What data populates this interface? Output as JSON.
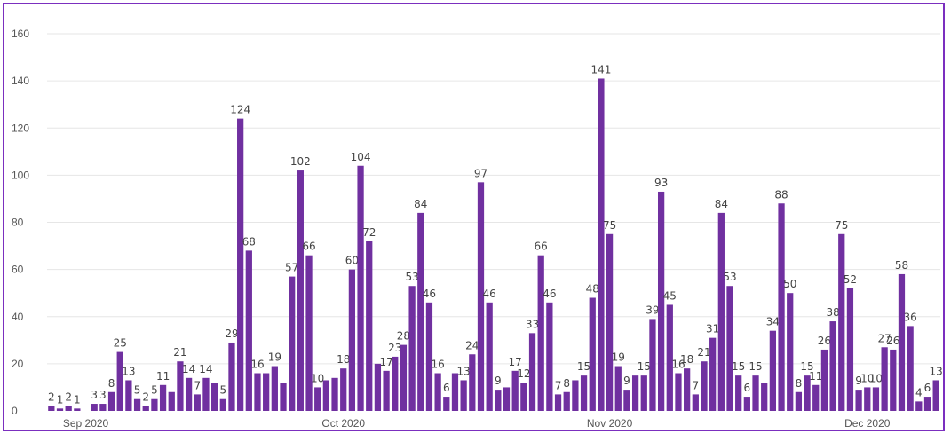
{
  "chart_data": {
    "type": "bar",
    "title": "",
    "xlabel": "",
    "ylabel": "",
    "ylim": [
      0,
      160
    ],
    "yticks": [
      0,
      20,
      40,
      60,
      80,
      100,
      120,
      140,
      160
    ],
    "grid": true,
    "bar_color": "#7030a0",
    "frame_color": "#7b2fbf",
    "x_tick_labels": [
      {
        "label": "Sep 2020",
        "index": 4
      },
      {
        "label": "Oct 2020",
        "index": 34
      },
      {
        "label": "Nov 2020",
        "index": 65
      },
      {
        "label": "Dec 2020",
        "index": 95
      }
    ],
    "values": [
      2,
      1,
      2,
      1,
      0,
      3,
      3,
      8,
      25,
      13,
      5,
      2,
      5,
      11,
      8,
      21,
      14,
      7,
      14,
      12,
      5,
      29,
      124,
      68,
      16,
      16,
      19,
      12,
      57,
      102,
      66,
      10,
      13,
      14,
      18,
      60,
      104,
      72,
      20,
      17,
      23,
      28,
      53,
      84,
      46,
      16,
      6,
      16,
      13,
      24,
      97,
      46,
      9,
      10,
      17,
      12,
      33,
      66,
      46,
      7,
      8,
      13,
      15,
      48,
      141,
      75,
      19,
      9,
      15,
      15,
      39,
      93,
      45,
      16,
      18,
      7,
      21,
      31,
      84,
      53,
      15,
      6,
      15,
      12,
      34,
      88,
      50,
      8,
      15,
      11,
      26,
      38,
      75,
      52,
      9,
      10,
      10,
      27,
      26,
      58,
      36,
      4,
      6,
      13
    ],
    "labeled_indices": [
      0,
      1,
      2,
      3,
      5,
      6,
      7,
      8,
      9,
      10,
      11,
      12,
      13,
      15,
      16,
      17,
      18,
      20,
      21,
      22,
      23,
      24,
      26,
      28,
      29,
      30,
      31,
      34,
      35,
      36,
      37,
      39,
      40,
      41,
      42,
      43,
      44,
      45,
      46,
      48,
      49,
      50,
      51,
      52,
      54,
      55,
      56,
      57,
      58,
      59,
      60,
      62,
      63,
      64,
      65,
      66,
      67,
      69,
      70,
      71,
      72,
      73,
      74,
      75,
      76,
      77,
      78,
      79,
      80,
      81,
      82,
      84,
      85,
      86,
      87,
      88,
      89,
      90,
      91,
      92,
      93,
      94,
      95,
      96,
      97,
      98,
      99,
      100,
      101,
      102,
      103
    ]
  }
}
